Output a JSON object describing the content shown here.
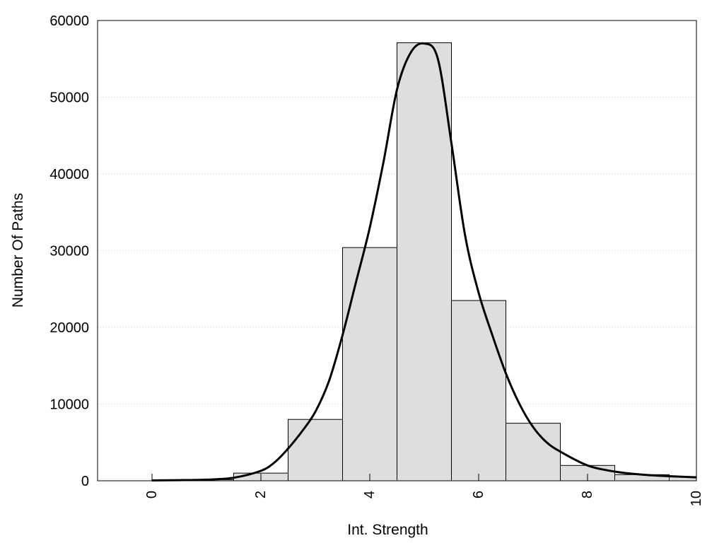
{
  "chart_data": {
    "type": "bar",
    "title": "",
    "xlabel": "Int. Strength",
    "ylabel": "Number Of Paths",
    "xlim": [
      -1,
      10
    ],
    "ylim": [
      0,
      60000
    ],
    "x_ticks": [
      "0",
      "2",
      "4",
      "6",
      "8",
      "10"
    ],
    "y_ticks": [
      "0",
      "10000",
      "20000",
      "30000",
      "40000",
      "50000",
      "60000"
    ],
    "grid": "horizontal dotted",
    "colors": {
      "bar_fill": "#dedede",
      "bar_edge": "#000000",
      "curve": "#000000",
      "grid": "#cccccc"
    },
    "histogram": {
      "bins": [
        {
          "x_start": 0.0,
          "x_end": 1.0,
          "value": 60
        },
        {
          "x_start": 1.0,
          "x_end": 1.5,
          "value": 150
        },
        {
          "x_start": 1.5,
          "x_end": 2.5,
          "value": 1000
        },
        {
          "x_start": 2.5,
          "x_end": 3.5,
          "value": 8000
        },
        {
          "x_start": 3.5,
          "x_end": 4.5,
          "value": 30400
        },
        {
          "x_start": 4.5,
          "x_end": 5.5,
          "value": 57100
        },
        {
          "x_start": 5.5,
          "x_end": 6.5,
          "value": 23500
        },
        {
          "x_start": 6.5,
          "x_end": 7.5,
          "value": 7500
        },
        {
          "x_start": 7.5,
          "x_end": 8.5,
          "value": 2000
        },
        {
          "x_start": 8.5,
          "x_end": 9.5,
          "value": 800
        },
        {
          "x_start": 9.5,
          "x_end": 10.0,
          "value": 500
        }
      ]
    },
    "curve": {
      "x": [
        0,
        0.5,
        1,
        1.5,
        2,
        2.25,
        2.5,
        2.75,
        3,
        3.25,
        3.5,
        3.75,
        4,
        4.25,
        4.5,
        4.75,
        5,
        5.25,
        5.5,
        5.75,
        6,
        6.25,
        6.5,
        6.75,
        7,
        7.25,
        7.5,
        8,
        8.5,
        9,
        9.5,
        10
      ],
      "y": [
        50,
        80,
        150,
        400,
        1300,
        2400,
        4200,
        6400,
        9000,
        13000,
        19000,
        26000,
        33000,
        41500,
        51000,
        55800,
        57000,
        55000,
        44000,
        32000,
        24500,
        19000,
        14000,
        10000,
        7000,
        5000,
        3800,
        2000,
        1200,
        800,
        600,
        450
      ]
    }
  }
}
